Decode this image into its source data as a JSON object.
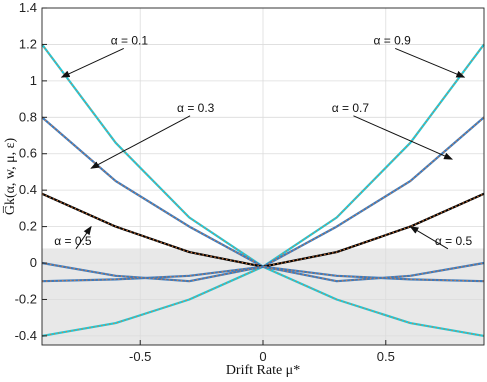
{
  "chart_data": {
    "type": "line",
    "xlabel": "Drift Rate μ*",
    "ylabel": "G̅k(α, w, μ, ε)",
    "xlim": [
      -0.9,
      0.9
    ],
    "ylim": [
      -0.45,
      1.4
    ],
    "xticks": [
      -0.5,
      0,
      0.5
    ],
    "xtick_labels": [
      "-0.5",
      "0",
      "0.5"
    ],
    "yticks": [
      -0.4,
      -0.2,
      0,
      0.2,
      0.4,
      0.6,
      0.8,
      1,
      1.2,
      1.4
    ],
    "ytick_labels": [
      "-0.4",
      "-0.2",
      "0",
      "0.2",
      "0.4",
      "0.6",
      "0.8",
      "1",
      "1.2",
      "1.4"
    ],
    "grid": true,
    "shaded_region": {
      "x": [
        -0.9,
        0.9
      ],
      "y": [
        -0.45,
        0.08
      ],
      "color": "#e8e8e8"
    },
    "series": [
      {
        "color": "#1fc8d8",
        "x": [
          -0.9,
          -0.6,
          -0.3,
          0,
          0.3,
          0.6,
          0.9
        ],
        "values": [
          1.2,
          0.66,
          0.25,
          -0.02,
          -0.2,
          -0.33,
          -0.4
        ]
      },
      {
        "color": "#1fc8d8",
        "x": [
          -0.9,
          -0.6,
          -0.3,
          0,
          0.3,
          0.6,
          0.9
        ],
        "values": [
          -0.4,
          -0.33,
          -0.2,
          -0.02,
          0.25,
          0.66,
          1.2
        ]
      },
      {
        "color": "#3a7bbf",
        "x": [
          -0.9,
          -0.6,
          -0.3,
          0,
          0.3,
          0.6,
          0.9
        ],
        "values": [
          0.8,
          0.45,
          0.2,
          -0.02,
          -0.07,
          -0.09,
          -0.1
        ]
      },
      {
        "color": "#3a7bbf",
        "x": [
          -0.9,
          -0.6,
          -0.3,
          0,
          0.3,
          0.6,
          0.9
        ],
        "values": [
          -0.1,
          -0.09,
          -0.07,
          -0.02,
          0.2,
          0.45,
          0.8
        ]
      },
      {
        "color": "#000000",
        "x": [
          -0.9,
          -0.6,
          -0.3,
          0,
          0.3,
          0.6,
          0.9
        ],
        "values": [
          0.38,
          0.2,
          0.06,
          -0.02,
          0.06,
          0.2,
          0.38
        ]
      },
      {
        "color": "#3a7bbf",
        "x": [
          -0.9,
          -0.6,
          -0.3,
          0,
          0.3,
          0.6,
          0.9
        ],
        "values": [
          0.0,
          -0.07,
          -0.1,
          -0.02,
          -0.1,
          -0.07,
          0.0
        ]
      }
    ],
    "annotations": [
      {
        "text": "α = 0.1",
        "x": -0.62,
        "y": 1.2,
        "arrow_x": -0.82,
        "arrow_y": 1.02
      },
      {
        "text": "α = 0.3",
        "x": -0.35,
        "y": 0.83,
        "arrow_x": -0.7,
        "arrow_y": 0.52
      },
      {
        "text": "α = 0.5",
        "x": -0.85,
        "y": 0.1,
        "arrow_x": -0.7,
        "arrow_y": 0.2
      },
      {
        "text": "α = 0.9",
        "x": 0.45,
        "y": 1.2,
        "arrow_x": 0.82,
        "arrow_y": 1.02
      },
      {
        "text": "α = 0.7",
        "x": 0.28,
        "y": 0.83,
        "arrow_x": 0.77,
        "arrow_y": 0.57
      },
      {
        "text": "α = 0.5",
        "x": 0.7,
        "y": 0.1,
        "arrow_x": 0.6,
        "arrow_y": 0.2
      }
    ]
  }
}
